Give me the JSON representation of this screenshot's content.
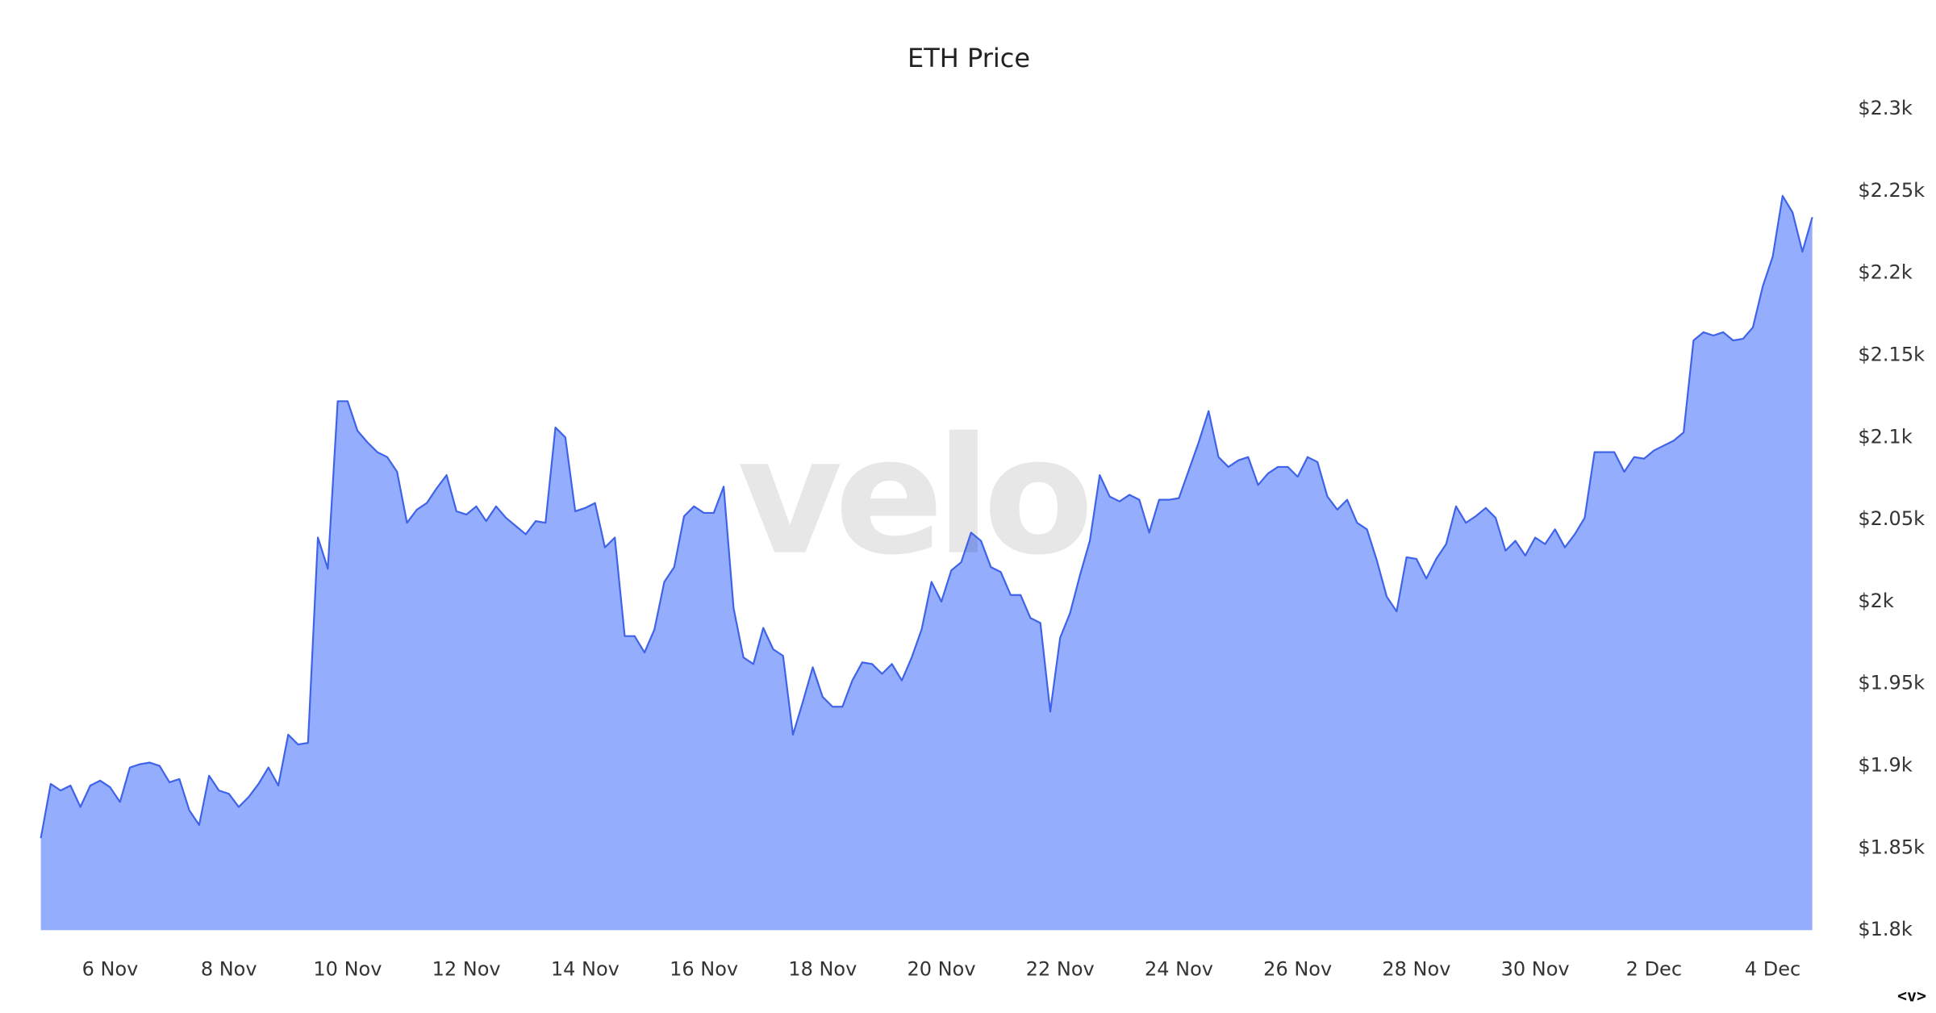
{
  "chart_data": {
    "type": "area",
    "title": "ETH Price",
    "watermark": "velo",
    "badge": "<v>",
    "color": "#3f63e8",
    "fill": "#94aefd",
    "ylim": [
      1800,
      2300
    ],
    "yticks": [
      {
        "value": 1800,
        "label": "$1.8k"
      },
      {
        "value": 1850,
        "label": "$1.85k"
      },
      {
        "value": 1900,
        "label": "$1.9k"
      },
      {
        "value": 1950,
        "label": "$1.95k"
      },
      {
        "value": 2000,
        "label": "$2k"
      },
      {
        "value": 2050,
        "label": "$2.05k"
      },
      {
        "value": 2100,
        "label": "$2.1k"
      },
      {
        "value": 2150,
        "label": "$2.15k"
      },
      {
        "value": 2200,
        "label": "$2.2k"
      },
      {
        "value": 2250,
        "label": "$2.25k"
      },
      {
        "value": 2300,
        "label": "$2.3k"
      }
    ],
    "categories": [
      null,
      null,
      null,
      null,
      null,
      null,
      null,
      "6 Nov",
      null,
      null,
      null,
      null,
      null,
      null,
      null,
      null,
      null,
      null,
      null,
      "8 Nov",
      null,
      null,
      null,
      null,
      null,
      null,
      null,
      null,
      null,
      null,
      null,
      "10 Nov",
      null,
      null,
      null,
      null,
      null,
      null,
      null,
      null,
      null,
      null,
      null,
      "12 Nov",
      null,
      null,
      null,
      null,
      null,
      null,
      null,
      null,
      null,
      null,
      null,
      "14 Nov",
      null,
      null,
      null,
      null,
      null,
      null,
      null,
      null,
      null,
      null,
      null,
      "16 Nov",
      null,
      null,
      null,
      null,
      null,
      null,
      null,
      null,
      null,
      null,
      null,
      "18 Nov",
      null,
      null,
      null,
      null,
      null,
      null,
      null,
      null,
      null,
      null,
      null,
      "20 Nov",
      null,
      null,
      null,
      null,
      null,
      null,
      null,
      null,
      null,
      null,
      null,
      "22 Nov",
      null,
      null,
      null,
      null,
      null,
      null,
      null,
      null,
      null,
      null,
      null,
      "24 Nov",
      null,
      null,
      null,
      null,
      null,
      null,
      null,
      null,
      null,
      null,
      null,
      "26 Nov",
      null,
      null,
      null,
      null,
      null,
      null,
      null,
      null,
      null,
      null,
      null,
      "28 Nov",
      null,
      null,
      null,
      null,
      null,
      null,
      null,
      null,
      null,
      null,
      null,
      "30 Nov",
      null,
      null,
      null,
      null,
      null,
      null,
      null,
      null,
      null,
      null,
      null,
      "2 Dec",
      null,
      null,
      null,
      null,
      null,
      null,
      null,
      null,
      null,
      null,
      null,
      "4 Dec",
      null,
      null,
      null,
      null
    ],
    "values": [
      1856,
      1889,
      1885,
      1888,
      1875,
      1888,
      1891,
      1887,
      1878,
      1899,
      1901,
      1902,
      1900,
      1890,
      1892,
      1873,
      1864,
      1894,
      1885,
      1883,
      1875,
      1881,
      1889,
      1899,
      1888,
      1919,
      1913,
      1914,
      2039,
      2020,
      2122,
      2122,
      2104,
      2097,
      2091,
      2088,
      2079,
      2048,
      2056,
      2060,
      2069,
      2077,
      2055,
      2053,
      2058,
      2049,
      2058,
      2051,
      2046,
      2041,
      2049,
      2048,
      2106,
      2100,
      2055,
      2057,
      2060,
      2033,
      2039,
      1979,
      1979,
      1969,
      1983,
      2012,
      2021,
      2052,
      2058,
      2054,
      2054,
      2070,
      1996,
      1966,
      1962,
      1984,
      1971,
      1967,
      1919,
      1939,
      1960,
      1942,
      1936,
      1936,
      1952,
      1963,
      1962,
      1956,
      1962,
      1952,
      1966,
      1983,
      2012,
      2000,
      2019,
      2024,
      2042,
      2037,
      2021,
      2018,
      2004,
      2004,
      1990,
      1987,
      1933,
      1978,
      1993,
      2016,
      2037,
      2077,
      2064,
      2061,
      2065,
      2062,
      2042,
      2062,
      2062,
      2063,
      2080,
      2097,
      2116,
      2088,
      2082,
      2086,
      2088,
      2071,
      2078,
      2082,
      2082,
      2076,
      2088,
      2085,
      2064,
      2056,
      2062,
      2048,
      2044,
      2025,
      2003,
      1994,
      2027,
      2026,
      2014,
      2026,
      2035,
      2058,
      2048,
      2052,
      2057,
      2051,
      2031,
      2037,
      2028,
      2039,
      2035,
      2044,
      2033,
      2041,
      2051,
      2091,
      2091,
      2091,
      2079,
      2088,
      2087,
      2092,
      2095,
      2098,
      2103,
      2159,
      2164,
      2162,
      2164,
      2159,
      2160,
      2167,
      2192,
      2210,
      2247,
      2237,
      2213,
      2234
    ]
  }
}
